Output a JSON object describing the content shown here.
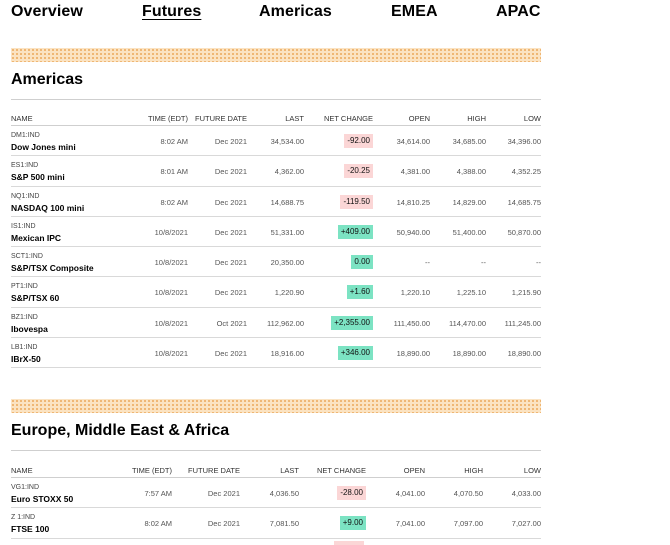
{
  "nav": {
    "items": [
      {
        "label": "Overview"
      },
      {
        "label": "Futures"
      },
      {
        "label": "Americas"
      },
      {
        "label": "EMEA"
      },
      {
        "label": "APAC"
      }
    ],
    "active": "Futures"
  },
  "columns": {
    "name": "NAME",
    "time": "TIME (EDT)",
    "future_date": "FUTURE DATE",
    "last": "LAST",
    "net_change": "NET CHANGE",
    "open": "OPEN",
    "high": "HIGH",
    "low": "LOW"
  },
  "colors": {
    "negative": "#fbd6d6",
    "positive": "#7ce3c3",
    "band": "#fbe3c2"
  },
  "americas": {
    "title": "Americas",
    "rows": [
      {
        "symbol": "DM1:IND",
        "name": "Dow Jones mini",
        "time": "8:02 AM",
        "future_date": "Dec 2021",
        "last": "34,534.00",
        "net_change": "-92.00",
        "dir": "neg",
        "open": "34,614.00",
        "high": "34,685.00",
        "low": "34,396.00"
      },
      {
        "symbol": "ES1:IND",
        "name": "S&P 500 mini",
        "time": "8:01 AM",
        "future_date": "Dec 2021",
        "last": "4,362.00",
        "net_change": "-20.25",
        "dir": "neg",
        "open": "4,381.00",
        "high": "4,388.00",
        "low": "4,352.25"
      },
      {
        "symbol": "NQ1:IND",
        "name": "NASDAQ 100 mini",
        "time": "8:02 AM",
        "future_date": "Dec 2021",
        "last": "14,688.75",
        "net_change": "-119.50",
        "dir": "neg",
        "open": "14,810.25",
        "high": "14,829.00",
        "low": "14,685.75"
      },
      {
        "symbol": "IS1:IND",
        "name": "Mexican IPC",
        "time": "10/8/2021",
        "future_date": "Dec 2021",
        "last": "51,331.00",
        "net_change": "+409.00",
        "dir": "pos",
        "open": "50,940.00",
        "high": "51,400.00",
        "low": "50,870.00"
      },
      {
        "symbol": "SCT1:IND",
        "name": "S&P/TSX Composite",
        "time": "10/8/2021",
        "future_date": "Dec 2021",
        "last": "20,350.00",
        "net_change": "0.00",
        "dir": "flat",
        "open": "--",
        "high": "--",
        "low": "--"
      },
      {
        "symbol": "PT1:IND",
        "name": "S&P/TSX 60",
        "time": "10/8/2021",
        "future_date": "Dec 2021",
        "last": "1,220.90",
        "net_change": "+1.60",
        "dir": "pos",
        "open": "1,220.10",
        "high": "1,225.10",
        "low": "1,215.90"
      },
      {
        "symbol": "BZ1:IND",
        "name": "Ibovespa",
        "time": "10/8/2021",
        "future_date": "Oct 2021",
        "last": "112,962.00",
        "net_change": "+2,355.00",
        "dir": "pos",
        "open": "111,450.00",
        "high": "114,470.00",
        "low": "111,245.00"
      },
      {
        "symbol": "LB1:IND",
        "name": "IBrX-50",
        "time": "10/8/2021",
        "future_date": "Dec 2021",
        "last": "18,916.00",
        "net_change": "+346.00",
        "dir": "pos",
        "open": "18,890.00",
        "high": "18,890.00",
        "low": "18,890.00"
      }
    ]
  },
  "emea": {
    "title": "Europe, Middle East & Africa",
    "rows": [
      {
        "symbol": "VG1:IND",
        "name": "Euro STOXX 50",
        "time": "7:57 AM",
        "future_date": "Dec 2021",
        "last": "4,036.50",
        "net_change": "-28.00",
        "dir": "neg",
        "open": "4,041.00",
        "high": "4,070.50",
        "low": "4,033.00"
      },
      {
        "symbol": "Z 1:IND",
        "name": "FTSE 100",
        "time": "8:02 AM",
        "future_date": "Dec 2021",
        "last": "7,081.50",
        "net_change": "+9.00",
        "dir": "pos",
        "open": "7,041.00",
        "high": "7,097.00",
        "low": "7,027.00"
      }
    ]
  }
}
